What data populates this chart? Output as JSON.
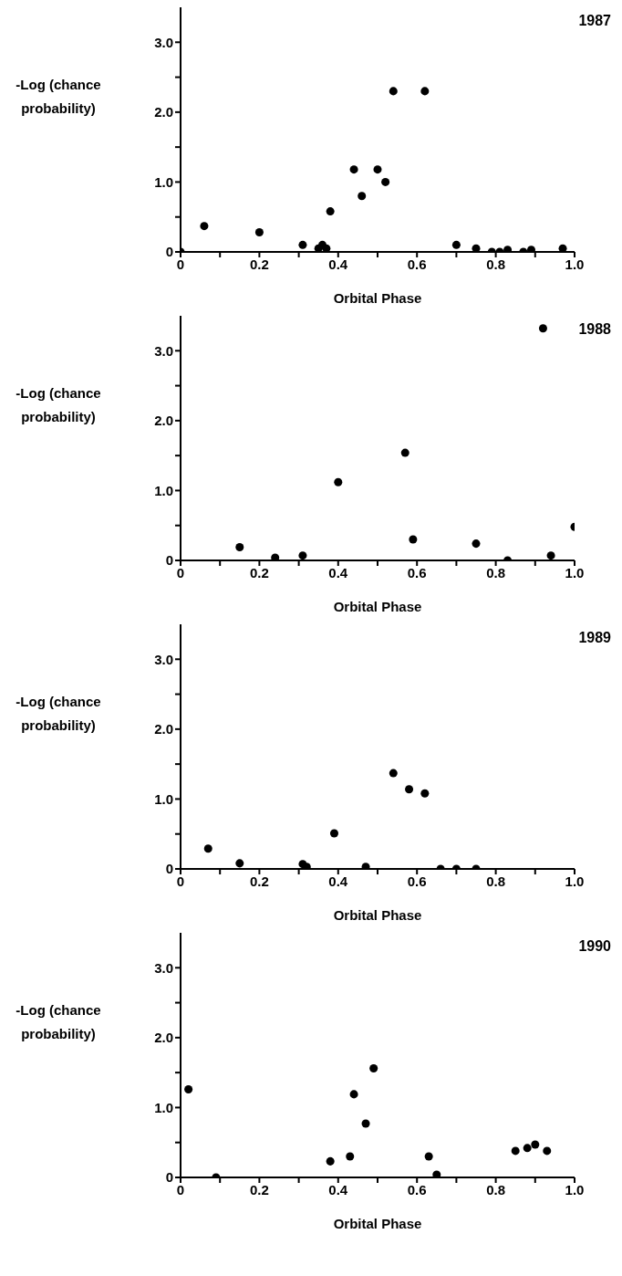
{
  "chart_data": [
    {
      "type": "scatter",
      "title": "1987",
      "xlabel": "Orbital Phase",
      "ylabel": "-Log (chance probability)",
      "color": "#000000",
      "marker": "circle",
      "grid": false,
      "x": [
        0,
        0.06,
        0.2,
        0.31,
        0.35,
        0.36,
        0.37,
        0.38,
        0.44,
        0.46,
        0.5,
        0.52,
        0.54,
        0.62,
        0.7,
        0.75,
        0.79,
        0.81,
        0.83,
        0.87,
        0.89,
        0.97
      ],
      "values": [
        0,
        0.37,
        0.28,
        0.1,
        0.05,
        0.1,
        0.05,
        0.58,
        1.18,
        0.8,
        1.18,
        1.0,
        2.3,
        2.3,
        0.1,
        0.05,
        0,
        0,
        0.03,
        0,
        0.03,
        0.05
      ],
      "xlim": [
        0,
        1
      ],
      "xticks": [
        0,
        {
          "value": 0.1,
          "label": null
        },
        0.2,
        {
          "value": 0.3,
          "label": null
        },
        0.4,
        {
          "value": 0.5,
          "label": null
        },
        0.6,
        {
          "value": 0.7,
          "label": null
        },
        0.8,
        {
          "value": 0.9,
          "label": null
        },
        {
          "value": 1,
          "label": "1.0"
        }
      ],
      "ylim": [
        0,
        3.5
      ],
      "yticks": [
        {
          "value": 0,
          "label": "0"
        },
        {
          "value": 0.5,
          "label": null
        },
        {
          "value": 1,
          "label": "1.0"
        },
        {
          "value": 1.5,
          "label": null
        },
        {
          "value": 2,
          "label": "2.0"
        },
        {
          "value": 2.5,
          "label": null
        },
        {
          "value": 3,
          "label": "3.0"
        }
      ]
    },
    {
      "type": "scatter",
      "title": "1988",
      "xlabel": "Orbital Phase",
      "ylabel": "-Log (chance probability)",
      "color": "#000000",
      "marker": "circle",
      "grid": false,
      "x": [
        0.15,
        0.24,
        0.31,
        0.4,
        0.57,
        0.59,
        0.75,
        0.83,
        0.92,
        0.94,
        1.0
      ],
      "values": [
        0.19,
        0.04,
        0.07,
        1.12,
        1.54,
        0.3,
        0.24,
        0,
        3.32,
        0.07,
        0.48
      ],
      "xlim": [
        0,
        1
      ],
      "xticks": [
        0,
        {
          "value": 0.1,
          "label": null
        },
        0.2,
        {
          "value": 0.3,
          "label": null
        },
        0.4,
        {
          "value": 0.5,
          "label": null
        },
        0.6,
        {
          "value": 0.7,
          "label": null
        },
        0.8,
        {
          "value": 0.9,
          "label": null
        },
        {
          "value": 1,
          "label": "1.0"
        }
      ],
      "ylim": [
        0,
        3.5
      ],
      "yticks": [
        {
          "value": 0,
          "label": "0"
        },
        {
          "value": 0.5,
          "label": null
        },
        {
          "value": 1,
          "label": "1.0"
        },
        {
          "value": 1.5,
          "label": null
        },
        {
          "value": 2,
          "label": "2.0"
        },
        {
          "value": 2.5,
          "label": null
        },
        {
          "value": 3,
          "label": "3.0"
        }
      ]
    },
    {
      "type": "scatter",
      "title": "1989",
      "xlabel": "Orbital Phase",
      "ylabel": "-Log (chance probability)",
      "color": "#000000",
      "marker": "circle",
      "grid": false,
      "x": [
        0.07,
        0.15,
        0.31,
        0.32,
        0.39,
        0.47,
        0.54,
        0.58,
        0.62,
        0.66,
        0.7,
        0.75
      ],
      "values": [
        0.29,
        0.08,
        0.07,
        0.03,
        0.51,
        0.03,
        1.37,
        1.14,
        1.08,
        0,
        0,
        0
      ],
      "xlim": [
        0,
        1
      ],
      "xticks": [
        0,
        {
          "value": 0.1,
          "label": null
        },
        0.2,
        {
          "value": 0.3,
          "label": null
        },
        0.4,
        {
          "value": 0.5,
          "label": null
        },
        0.6,
        {
          "value": 0.7,
          "label": null
        },
        0.8,
        {
          "value": 0.9,
          "label": null
        },
        {
          "value": 1,
          "label": "1.0"
        }
      ],
      "ylim": [
        0,
        3.5
      ],
      "yticks": [
        {
          "value": 0,
          "label": "0"
        },
        {
          "value": 0.5,
          "label": null
        },
        {
          "value": 1,
          "label": "1.0"
        },
        {
          "value": 1.5,
          "label": null
        },
        {
          "value": 2,
          "label": "2.0"
        },
        {
          "value": 2.5,
          "label": null
        },
        {
          "value": 3,
          "label": "3.0"
        }
      ]
    },
    {
      "type": "scatter",
      "title": "1990",
      "xlabel": "Orbital Phase",
      "ylabel": "-Log (chance probability)",
      "color": "#000000",
      "marker": "circle",
      "grid": false,
      "x": [
        0.02,
        0.09,
        0.38,
        0.43,
        0.44,
        0.47,
        0.49,
        0.63,
        0.65,
        0.85,
        0.88,
        0.9,
        0.93
      ],
      "values": [
        1.26,
        0,
        0.23,
        0.3,
        1.19,
        0.77,
        1.56,
        0.3,
        0.04,
        0.38,
        0.42,
        0.47,
        0.38
      ],
      "xlim": [
        0,
        1
      ],
      "xticks": [
        0,
        {
          "value": 0.1,
          "label": null
        },
        0.2,
        {
          "value": 0.3,
          "label": null
        },
        0.4,
        {
          "value": 0.5,
          "label": null
        },
        0.6,
        {
          "value": 0.7,
          "label": null
        },
        0.8,
        {
          "value": 0.9,
          "label": null
        },
        {
          "value": 1,
          "label": "1.0"
        }
      ],
      "ylim": [
        0,
        3.5
      ],
      "yticks": [
        {
          "value": 0,
          "label": "0"
        },
        {
          "value": 0.5,
          "label": null
        },
        {
          "value": 1,
          "label": "1.0"
        },
        {
          "value": 1.5,
          "label": null
        },
        {
          "value": 2,
          "label": "2.0"
        },
        {
          "value": 2.5,
          "label": null
        },
        {
          "value": 3,
          "label": "3.0"
        }
      ]
    }
  ]
}
